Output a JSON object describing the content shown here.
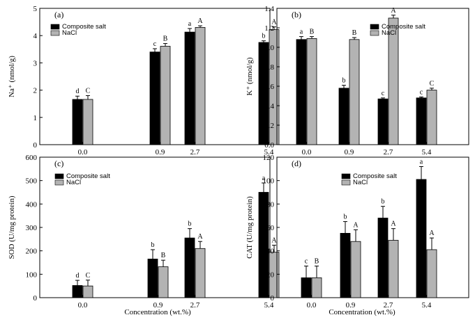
{
  "figure": {
    "xlabel": "Concentration (wt.%)",
    "categories": [
      "0.0",
      "0.9",
      "2.7",
      "5.4"
    ],
    "legend": [
      "Composite salt",
      "NaCl"
    ],
    "colors": {
      "Composite salt": "#000000",
      "NaCl": "#b3b3b3"
    }
  },
  "chart_data": [
    {
      "panel": "(a)",
      "type": "bar",
      "ylabel": "Na⁺ (nmol/g)",
      "ylim": [
        0,
        5
      ],
      "yticks": [
        0,
        1,
        2,
        3,
        4,
        5
      ],
      "ytick_labels": [
        "0",
        "1",
        "2",
        "3",
        "4",
        "5"
      ],
      "categories": [
        "0.0",
        "0.9",
        "2.7",
        "5.4"
      ],
      "legend_position": "top-left",
      "series": [
        {
          "name": "Composite salt",
          "values": [
            1.66,
            3.4,
            4.13,
            3.75
          ],
          "errors": [
            0.12,
            0.12,
            0.13,
            0.06
          ],
          "labels": [
            "d",
            "c",
            "a",
            "b"
          ]
        },
        {
          "name": "NaCl",
          "values": [
            1.66,
            3.61,
            4.3,
            4.22
          ],
          "errors": [
            0.14,
            0.1,
            0.06,
            0.1
          ],
          "labels": [
            "C",
            "B",
            "A",
            "A"
          ]
        }
      ]
    },
    {
      "panel": "(b)",
      "type": "bar",
      "ylabel": "K⁺ (nmol/g)",
      "ylim": [
        0,
        1.4
      ],
      "yticks": [
        0,
        0.2,
        0.4,
        0.6,
        0.8,
        1.0,
        1.2,
        1.4
      ],
      "ytick_labels": [
        "0.0",
        "0.2",
        "0.4",
        "0.6",
        "0.8",
        "1.0",
        "1.2",
        "1.4"
      ],
      "categories": [
        "0.0",
        "0.9",
        "2.7",
        "5.4"
      ],
      "legend_position": "top-right",
      "series": [
        {
          "name": "Composite salt",
          "values": [
            1.08,
            0.58,
            0.47,
            0.48
          ],
          "errors": [
            0.03,
            0.03,
            0.01,
            0.01
          ],
          "labels": [
            "a",
            "b",
            "c",
            "c"
          ]
        },
        {
          "name": "NaCl",
          "values": [
            1.09,
            1.08,
            1.3,
            0.56
          ],
          "errors": [
            0.02,
            0.02,
            0.03,
            0.02
          ],
          "labels": [
            "B",
            "B",
            "A",
            "C"
          ]
        }
      ]
    },
    {
      "panel": "(c)",
      "type": "bar",
      "ylabel": "SOD (U/mg protein)",
      "ylim": [
        0,
        600
      ],
      "yticks": [
        0,
        100,
        200,
        300,
        400,
        500,
        600
      ],
      "ytick_labels": [
        "0",
        "100",
        "200",
        "300",
        "400",
        "500",
        "600"
      ],
      "categories": [
        "0.0",
        "0.9",
        "2.7",
        "5.4"
      ],
      "legend_position": "top-left",
      "series": [
        {
          "name": "Composite salt",
          "values": [
            52,
            165,
            255,
            450
          ],
          "errors": [
            22,
            40,
            40,
            40
          ],
          "labels": [
            "d",
            "b",
            "b",
            "a"
          ]
        },
        {
          "name": "NaCl",
          "values": [
            50,
            132,
            210,
            194
          ],
          "errors": [
            25,
            28,
            30,
            30
          ],
          "labels": [
            "C",
            "B",
            "A",
            "A"
          ]
        }
      ]
    },
    {
      "panel": "(d)",
      "type": "bar",
      "ylabel": "CAT (U/mg protein)",
      "ylim": [
        0,
        120
      ],
      "yticks": [
        0,
        20,
        40,
        60,
        80,
        100,
        120
      ],
      "ytick_labels": [
        "0",
        "20",
        "40",
        "60",
        "80",
        "100",
        "120"
      ],
      "categories": [
        "0.0",
        "0.9",
        "2.7",
        "5.4"
      ],
      "legend_position": "top-left",
      "series": [
        {
          "name": "Composite salt",
          "values": [
            17,
            55,
            68,
            101
          ],
          "errors": [
            10,
            10,
            10,
            11
          ],
          "labels": [
            "c",
            "b",
            "b",
            "a"
          ]
        },
        {
          "name": "NaCl",
          "values": [
            17,
            48,
            49,
            41
          ],
          "errors": [
            10,
            10,
            10,
            10
          ],
          "labels": [
            "B",
            "A",
            "A",
            "A"
          ]
        }
      ]
    }
  ]
}
